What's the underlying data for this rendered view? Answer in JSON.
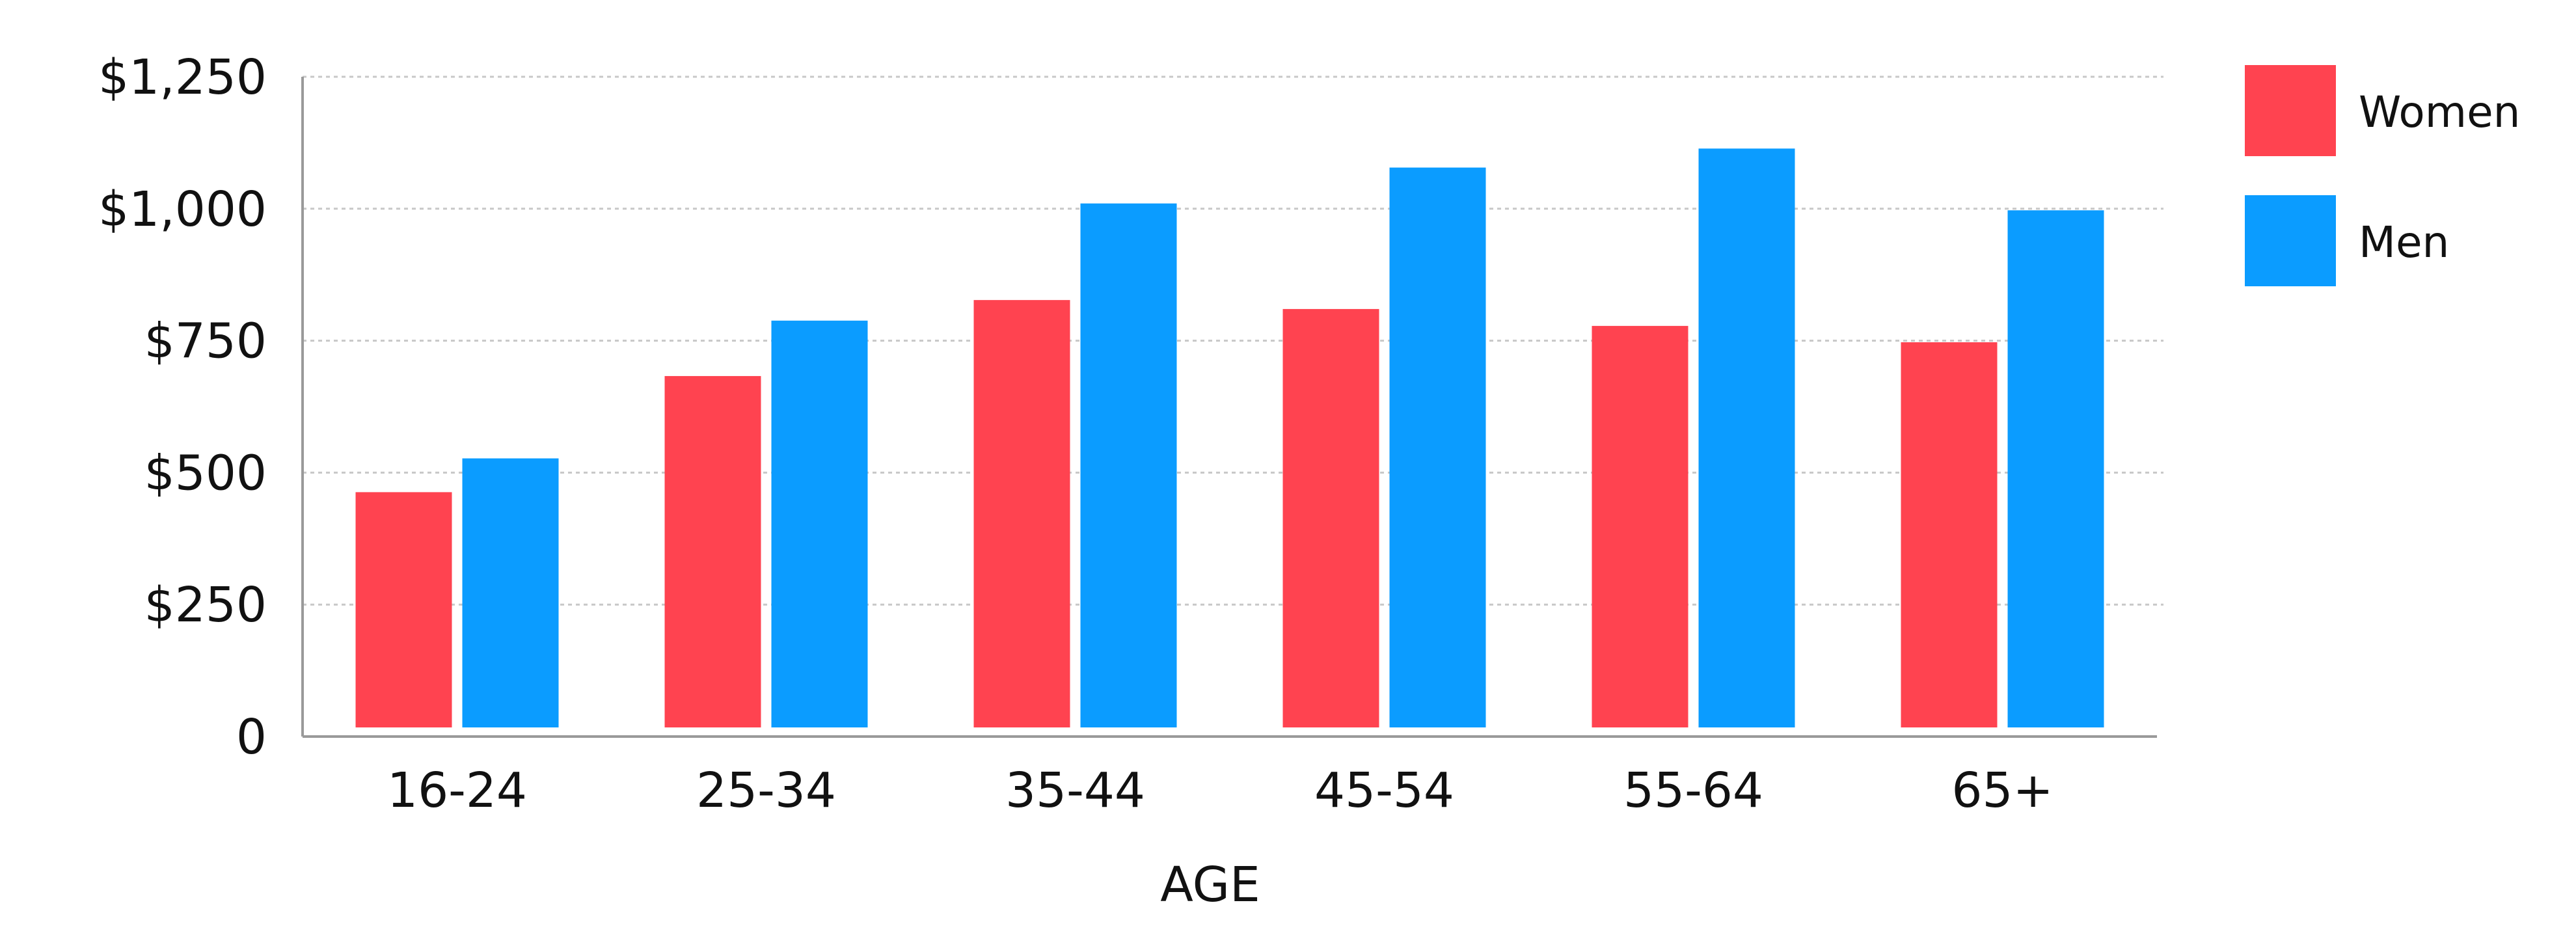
{
  "chart_data": {
    "type": "bar",
    "title": "",
    "xlabel": "AGE",
    "ylabel": "",
    "categories": [
      "16-24",
      "25-34",
      "35-44",
      "45-54",
      "55-64",
      "65+"
    ],
    "series": [
      {
        "name": "Women",
        "color": "#ff4350",
        "values": [
          463,
          683,
          827,
          810,
          778,
          747
        ]
      },
      {
        "name": "Men",
        "color": "#0b9cff",
        "values": [
          527,
          788,
          1010,
          1078,
          1114,
          997
        ]
      }
    ],
    "ylim": [
      0,
      1250
    ],
    "y_ticks": [
      {
        "value": 0,
        "label": "0"
      },
      {
        "value": 250,
        "label": "$250"
      },
      {
        "value": 500,
        "label": "$500"
      },
      {
        "value": 750,
        "label": "$750"
      },
      {
        "value": 1000,
        "label": "$1,000"
      },
      {
        "value": 1250,
        "label": "$1,250"
      }
    ],
    "grid": true,
    "legend_position": "top-right"
  }
}
